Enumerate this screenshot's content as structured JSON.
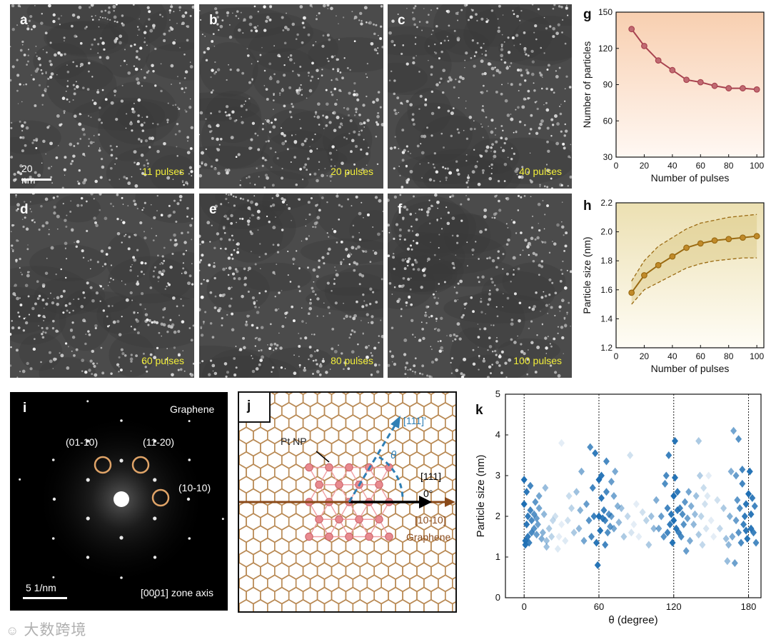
{
  "tem_panels": [
    {
      "label": "a",
      "pulses": "11 pulses"
    },
    {
      "label": "b",
      "pulses": "20 pulses"
    },
    {
      "label": "c",
      "pulses": "40 pulses"
    },
    {
      "label": "d",
      "pulses": "60 pulses"
    },
    {
      "label": "e",
      "pulses": "80 pulses"
    },
    {
      "label": "f",
      "pulses": "100 pulses"
    }
  ],
  "tem_scale": "20 nm",
  "panel_i": {
    "label": "i",
    "title": "Graphene",
    "spots": [
      "(01-10)",
      "(11-20)",
      "(10-10)"
    ],
    "scale": "5 1/nm",
    "zone_axis": "[0001] zone axis"
  },
  "panel_j": {
    "label": "j",
    "pt_np": "Pt NP",
    "dir_pt": "[111]'",
    "theta": "θ",
    "dir_111": "[111]",
    "zero": "0°",
    "dir_graphene": "[10-10]",
    "graphene": "Graphene"
  },
  "panel_k": {
    "label": "k"
  },
  "watermark": "大数跨境",
  "colors": {
    "tem_bg": "#4b4b4b",
    "pulse_text": "#f2ee3a",
    "g_line": "#a8434f",
    "h_line": "#9a6a12",
    "k_marker": "#1f6fb4",
    "graphene": "#b98a55",
    "pt": "#e88a8f"
  },
  "chart_data": [
    {
      "type": "line",
      "panel": "g",
      "xlabel": "Number of pulses",
      "ylabel": "Number of particles",
      "xlim": [
        0,
        105
      ],
      "ylim": [
        30,
        150
      ],
      "xticks": [
        0,
        20,
        40,
        60,
        80,
        100
      ],
      "yticks": [
        30,
        60,
        90,
        120,
        150
      ],
      "x": [
        11,
        20,
        30,
        40,
        50,
        60,
        70,
        80,
        90,
        100
      ],
      "values": [
        136,
        122,
        110,
        102,
        94,
        92,
        89,
        87,
        87,
        86
      ]
    },
    {
      "type": "line",
      "panel": "h",
      "xlabel": "Number of pulses",
      "ylabel": "Particle size (nm)",
      "xlim": [
        0,
        105
      ],
      "ylim": [
        1.2,
        2.2
      ],
      "xticks": [
        0,
        20,
        40,
        60,
        80,
        100
      ],
      "yticks": [
        1.2,
        1.4,
        1.6,
        1.8,
        2.0,
        2.2
      ],
      "x": [
        11,
        20,
        30,
        40,
        50,
        60,
        70,
        80,
        90,
        100
      ],
      "values": [
        1.58,
        1.7,
        1.77,
        1.83,
        1.89,
        1.92,
        1.94,
        1.95,
        1.96,
        1.97
      ],
      "upper": [
        1.66,
        1.8,
        1.9,
        1.96,
        2.02,
        2.06,
        2.08,
        2.1,
        2.11,
        2.12
      ],
      "lower": [
        1.5,
        1.6,
        1.65,
        1.7,
        1.75,
        1.78,
        1.8,
        1.81,
        1.82,
        1.82
      ]
    },
    {
      "type": "scatter",
      "panel": "k",
      "xlabel": "θ (degree)",
      "ylabel": "Particle size (nm)",
      "xlim": [
        -15,
        190
      ],
      "ylim": [
        0,
        5
      ],
      "xticks": [
        0,
        60,
        120,
        180
      ],
      "yticks": [
        0,
        1,
        2,
        3,
        4,
        5
      ],
      "reference_lines": [
        0,
        60,
        120,
        180
      ],
      "points": [
        [
          0,
          2.9
        ],
        [
          0,
          2.3
        ],
        [
          1,
          1.4
        ],
        [
          1,
          1.3
        ],
        [
          2,
          2.6
        ],
        [
          2,
          1.8
        ],
        [
          3,
          2.0
        ],
        [
          3,
          1.5
        ],
        [
          4,
          1.35
        ],
        [
          5,
          2.15
        ],
        [
          5,
          2.75
        ],
        [
          6,
          1.9
        ],
        [
          6,
          1.6
        ],
        [
          8,
          2.05
        ],
        [
          8,
          1.7
        ],
        [
          9,
          2.35
        ],
        [
          10,
          1.55
        ],
        [
          10,
          1.95
        ],
        [
          11,
          1.8
        ],
        [
          12,
          2.2
        ],
        [
          12,
          2.5
        ],
        [
          14,
          1.45
        ],
        [
          15,
          1.6
        ],
        [
          16,
          2.05
        ],
        [
          17,
          2.7
        ],
        [
          18,
          1.4
        ],
        [
          18,
          1.25
        ],
        [
          20,
          1.7
        ],
        [
          22,
          1.5
        ],
        [
          23,
          1.9
        ],
        [
          25,
          2.0
        ],
        [
          27,
          1.2
        ],
        [
          28,
          1.5
        ],
        [
          30,
          3.8
        ],
        [
          30,
          1.8
        ],
        [
          33,
          1.4
        ],
        [
          35,
          1.9
        ],
        [
          36,
          2.5
        ],
        [
          38,
          2.2
        ],
        [
          40,
          1.6
        ],
        [
          42,
          2.6
        ],
        [
          44,
          1.7
        ],
        [
          45,
          2.15
        ],
        [
          46,
          3.1
        ],
        [
          48,
          1.4
        ],
        [
          50,
          2.3
        ],
        [
          52,
          1.9
        ],
        [
          54,
          1.5
        ],
        [
          55,
          2.7
        ],
        [
          56,
          2.0
        ],
        [
          57,
          3.55
        ],
        [
          53,
          3.7
        ],
        [
          58,
          1.35
        ],
        [
          59,
          0.8
        ],
        [
          60,
          2.9
        ],
        [
          60,
          2.0
        ],
        [
          61,
          1.65
        ],
        [
          62,
          2.45
        ],
        [
          62,
          3.0
        ],
        [
          63,
          1.95
        ],
        [
          64,
          2.15
        ],
        [
          65,
          1.3
        ],
        [
          65,
          1.9
        ],
        [
          66,
          2.6
        ],
        [
          66,
          3.35
        ],
        [
          67,
          1.6
        ],
        [
          68,
          2.05
        ],
        [
          69,
          1.75
        ],
        [
          70,
          2.85
        ],
        [
          70,
          2.0
        ],
        [
          72,
          2.5
        ],
        [
          72,
          1.7
        ],
        [
          73,
          3.1
        ],
        [
          75,
          2.25
        ],
        [
          76,
          1.85
        ],
        [
          78,
          2.2
        ],
        [
          80,
          1.5
        ],
        [
          83,
          2.0
        ],
        [
          85,
          3.5
        ],
        [
          86,
          1.6
        ],
        [
          88,
          1.8
        ],
        [
          90,
          2.3
        ],
        [
          92,
          1.5
        ],
        [
          95,
          2.1
        ],
        [
          98,
          1.9
        ],
        [
          100,
          1.3
        ],
        [
          102,
          2.0
        ],
        [
          104,
          1.7
        ],
        [
          106,
          2.4
        ],
        [
          108,
          1.7
        ],
        [
          110,
          2.0
        ],
        [
          112,
          1.5
        ],
        [
          113,
          2.8
        ],
        [
          114,
          3.0
        ],
        [
          115,
          1.6
        ],
        [
          115,
          2.2
        ],
        [
          116,
          3.5
        ],
        [
          117,
          1.8
        ],
        [
          118,
          2.05
        ],
        [
          119,
          1.35
        ],
        [
          120,
          1.9
        ],
        [
          120,
          2.5
        ],
        [
          121,
          3.85
        ],
        [
          121,
          2.95
        ],
        [
          122,
          1.7
        ],
        [
          123,
          2.6
        ],
        [
          123,
          2.15
        ],
        [
          124,
          1.6
        ],
        [
          125,
          2.2
        ],
        [
          126,
          1.5
        ],
        [
          127,
          2.05
        ],
        [
          128,
          1.8
        ],
        [
          129,
          2.35
        ],
        [
          130,
          1.15
        ],
        [
          131,
          1.95
        ],
        [
          132,
          2.6
        ],
        [
          133,
          1.4
        ],
        [
          134,
          2.25
        ],
        [
          136,
          1.8
        ],
        [
          137,
          2.05
        ],
        [
          138,
          2.5
        ],
        [
          140,
          1.55
        ],
        [
          140,
          3.85
        ],
        [
          141,
          3.0
        ],
        [
          142,
          2.0
        ],
        [
          143,
          1.3
        ],
        [
          144,
          2.7
        ],
        [
          145,
          2.3
        ],
        [
          146,
          1.7
        ],
        [
          147,
          2.5
        ],
        [
          148,
          3.0
        ],
        [
          150,
          1.9
        ],
        [
          152,
          1.5
        ],
        [
          155,
          2.4
        ],
        [
          157,
          1.7
        ],
        [
          160,
          2.2
        ],
        [
          162,
          1.45
        ],
        [
          163,
          0.9
        ],
        [
          164,
          1.3
        ],
        [
          165,
          2.0
        ],
        [
          166,
          3.1
        ],
        [
          167,
          1.5
        ],
        [
          168,
          4.1
        ],
        [
          169,
          0.85
        ],
        [
          170,
          1.9
        ],
        [
          170,
          3.0
        ],
        [
          171,
          2.4
        ],
        [
          172,
          1.6
        ],
        [
          172,
          3.9
        ],
        [
          173,
          2.2
        ],
        [
          174,
          1.35
        ],
        [
          175,
          2.8
        ],
        [
          175,
          3.15
        ],
        [
          176,
          1.8
        ],
        [
          177,
          2.0
        ],
        [
          178,
          1.65
        ],
        [
          178,
          2.3
        ],
        [
          179,
          1.45
        ],
        [
          180,
          2.55
        ],
        [
          181,
          3.1
        ],
        [
          182,
          1.7
        ],
        [
          182,
          2.05
        ],
        [
          183,
          2.45
        ],
        [
          184,
          1.6
        ],
        [
          185,
          2.25
        ],
        [
          186,
          1.35
        ]
      ]
    }
  ]
}
